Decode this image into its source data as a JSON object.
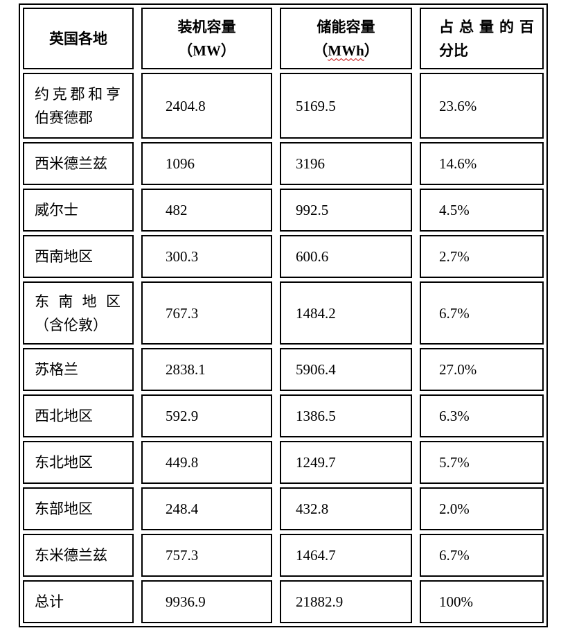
{
  "colors": {
    "border": "#000000",
    "background": "#ffffff",
    "text": "#000000",
    "spellcheck_underline": "#c00000"
  },
  "table": {
    "headers": [
      {
        "text": "英国各地"
      },
      {
        "line1": "装机容量",
        "line2": "（MW）"
      },
      {
        "line1": "储能容量",
        "paren_open": "（",
        "unit": "MWh",
        "paren_close": "）"
      },
      {
        "line1": "占总量的百",
        "line2": "分比"
      }
    ],
    "rows": [
      {
        "region_line1": "约克郡和亨",
        "region_line2": "伯赛德郡",
        "mw": "2404.8",
        "mwh": "5169.5",
        "pct": "23.6%"
      },
      {
        "region": "西米德兰兹",
        "mw": "1096",
        "mwh": "3196",
        "pct": "14.6%"
      },
      {
        "region": "威尔士",
        "mw": "482",
        "mwh": "992.5",
        "pct": "4.5%"
      },
      {
        "region": "西南地区",
        "mw": "300.3",
        "mwh": "600.6",
        "pct": "2.7%"
      },
      {
        "region_line1": "东南地区",
        "region_line2": "（含伦敦）",
        "mw": "767.3",
        "mwh": "1484.2",
        "pct": "6.7%"
      },
      {
        "region": "苏格兰",
        "mw": "2838.1",
        "mwh": "5906.4",
        "pct": "27.0%"
      },
      {
        "region": "西北地区",
        "mw": "592.9",
        "mwh": "1386.5",
        "pct": "6.3%"
      },
      {
        "region": "东北地区",
        "mw": "449.8",
        "mwh": "1249.7",
        "pct": "5.7%"
      },
      {
        "region": "东部地区",
        "mw": "248.4",
        "mwh": "432.8",
        "pct": "2.0%"
      },
      {
        "region": "东米德兰兹",
        "mw": "757.3",
        "mwh": "1464.7",
        "pct": "6.7%"
      },
      {
        "region": "总计",
        "mw": "9936.9",
        "mwh": "21882.9",
        "pct": "100%"
      }
    ]
  },
  "chart_data": {
    "type": "table",
    "title": "",
    "columns": [
      "英国各地",
      "装机容量（MW）",
      "储能容量（MWh）",
      "占总量的百分比"
    ],
    "rows": [
      [
        "约克郡和亨伯赛德郡",
        2404.8,
        5169.5,
        "23.6%"
      ],
      [
        "西米德兰兹",
        1096,
        3196,
        "14.6%"
      ],
      [
        "威尔士",
        482,
        992.5,
        "4.5%"
      ],
      [
        "西南地区",
        300.3,
        600.6,
        "2.7%"
      ],
      [
        "东南地区（含伦敦）",
        767.3,
        1484.2,
        "6.7%"
      ],
      [
        "苏格兰",
        2838.1,
        5906.4,
        "27.0%"
      ],
      [
        "西北地区",
        592.9,
        1386.5,
        "6.3%"
      ],
      [
        "东北地区",
        449.8,
        1249.7,
        "5.7%"
      ],
      [
        "东部地区",
        248.4,
        432.8,
        "2.0%"
      ],
      [
        "东米德兰兹",
        757.3,
        1464.7,
        "6.7%"
      ],
      [
        "总计",
        9936.9,
        21882.9,
        "100%"
      ]
    ]
  }
}
